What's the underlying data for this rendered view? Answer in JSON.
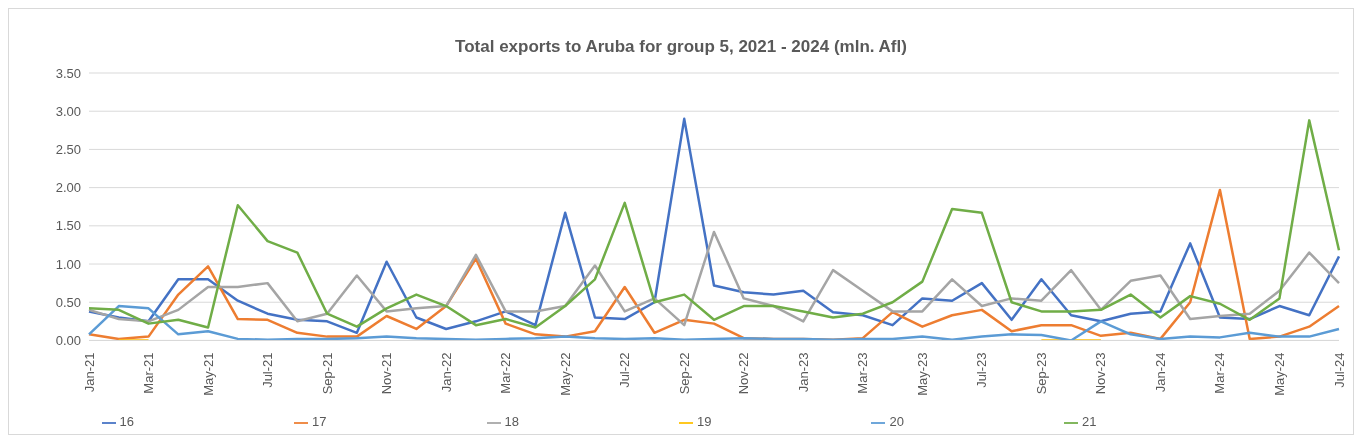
{
  "chart_data": {
    "type": "line",
    "title": "Total exports to Aruba for group 5, 2021 - 2024 (mln. Afl)",
    "categories": [
      "Jan-21",
      null,
      "Mar-21",
      null,
      "May-21",
      null,
      "Jul-21",
      null,
      "Sep-21",
      null,
      "Nov-21",
      null,
      "Jan-22",
      null,
      "Mar-22",
      null,
      "May-22",
      null,
      "Jul-22",
      null,
      "Sep-22",
      null,
      "Nov-22",
      null,
      "Jan-23",
      null,
      "Mar-23",
      null,
      "May-23",
      null,
      "Jul-23",
      null,
      "Sep-23",
      null,
      "Nov-23",
      null,
      "Jan-24",
      null,
      "Mar-24",
      null,
      "May-24",
      null,
      "Jul-24"
    ],
    "series": [
      {
        "name": "16",
        "color": "#4472c4",
        "values": [
          0.38,
          0.3,
          0.25,
          0.8,
          0.8,
          0.52,
          0.35,
          0.27,
          0.25,
          0.1,
          1.03,
          0.3,
          0.15,
          0.25,
          0.38,
          0.2,
          1.67,
          0.3,
          0.28,
          0.5,
          2.9,
          0.72,
          0.63,
          0.6,
          0.65,
          0.37,
          0.33,
          0.2,
          0.55,
          0.52,
          0.75,
          0.27,
          0.8,
          0.33,
          0.25,
          0.35,
          0.38,
          1.27,
          0.3,
          0.28,
          0.45,
          0.33,
          1.1
        ]
      },
      {
        "name": "17",
        "color": "#ed7d31",
        "values": [
          0.08,
          0.02,
          0.05,
          0.6,
          0.97,
          0.28,
          0.27,
          0.1,
          0.05,
          0.05,
          0.32,
          0.15,
          0.45,
          1.07,
          0.22,
          0.08,
          0.05,
          0.12,
          0.7,
          0.1,
          0.27,
          0.22,
          0.03,
          0.02,
          0.02,
          0.01,
          0.03,
          0.37,
          0.18,
          0.33,
          0.4,
          0.12,
          0.2,
          0.2,
          0.06,
          0.1,
          0.02,
          0.5,
          1.97,
          0.02,
          0.05,
          0.18,
          0.45
        ]
      },
      {
        "name": "18",
        "color": "#a5a5a5",
        "values": [
          0.4,
          0.28,
          0.25,
          0.4,
          0.7,
          0.7,
          0.75,
          0.25,
          0.35,
          0.85,
          0.38,
          0.42,
          0.45,
          1.12,
          0.38,
          0.38,
          0.45,
          0.98,
          0.38,
          0.55,
          0.2,
          1.42,
          0.55,
          0.45,
          0.25,
          0.92,
          0.65,
          0.38,
          0.38,
          0.8,
          0.45,
          0.55,
          0.52,
          0.92,
          0.4,
          0.78,
          0.85,
          0.28,
          0.32,
          0.35,
          0.65,
          1.15,
          0.75
        ]
      },
      {
        "name": "19",
        "color": "#ffc000",
        "values": [
          null,
          0,
          0,
          null,
          null,
          null,
          null,
          null,
          null,
          null,
          null,
          null,
          null,
          0,
          0,
          null,
          null,
          null,
          null,
          null,
          null,
          null,
          null,
          null,
          null,
          null,
          null,
          null,
          null,
          null,
          null,
          null,
          0,
          0,
          0,
          null,
          null,
          null,
          null,
          null,
          null,
          null,
          null
        ]
      },
      {
        "name": "20",
        "color": "#5b9bd5",
        "values": [
          0.08,
          0.45,
          0.42,
          0.08,
          0.12,
          0.02,
          0.01,
          0.02,
          0.02,
          0.03,
          0.05,
          0.03,
          0.02,
          0.01,
          0.02,
          0.03,
          0.05,
          0.03,
          0.02,
          0.03,
          0.01,
          0.02,
          0.03,
          0.02,
          0.02,
          0.01,
          0.02,
          0.02,
          0.05,
          0.01,
          0.05,
          0.08,
          0.07,
          0.0,
          0.25,
          0.08,
          0.02,
          0.05,
          0.04,
          0.1,
          0.05,
          0.05,
          0.15
        ]
      },
      {
        "name": "21",
        "color": "#70ad47",
        "values": [
          0.42,
          0.4,
          0.22,
          0.27,
          0.17,
          1.77,
          1.3,
          1.15,
          0.35,
          0.18,
          0.42,
          0.6,
          0.45,
          0.2,
          0.28,
          0.17,
          0.45,
          0.8,
          1.8,
          0.5,
          0.6,
          0.27,
          0.45,
          0.45,
          0.38,
          0.3,
          0.35,
          0.5,
          0.77,
          1.72,
          1.67,
          0.5,
          0.38,
          0.38,
          0.4,
          0.6,
          0.3,
          0.58,
          0.48,
          0.27,
          0.55,
          2.88,
          1.18
        ]
      }
    ],
    "ylim": [
      0,
      3.5
    ],
    "yticks": [
      {
        "value": 0,
        "label": "0.00"
      },
      {
        "value": 0.5,
        "label": "0.50"
      },
      {
        "value": 1,
        "label": "1.00"
      },
      {
        "value": 1.5,
        "label": "1.50"
      },
      {
        "value": 2,
        "label": "2.00"
      },
      {
        "value": 2.5,
        "label": "2.50"
      },
      {
        "value": 3,
        "label": "3.00"
      },
      {
        "value": 3.5,
        "label": "3.50"
      }
    ],
    "grid": "y",
    "legend": "bottom",
    "marker": "none",
    "line_style": "solid"
  }
}
